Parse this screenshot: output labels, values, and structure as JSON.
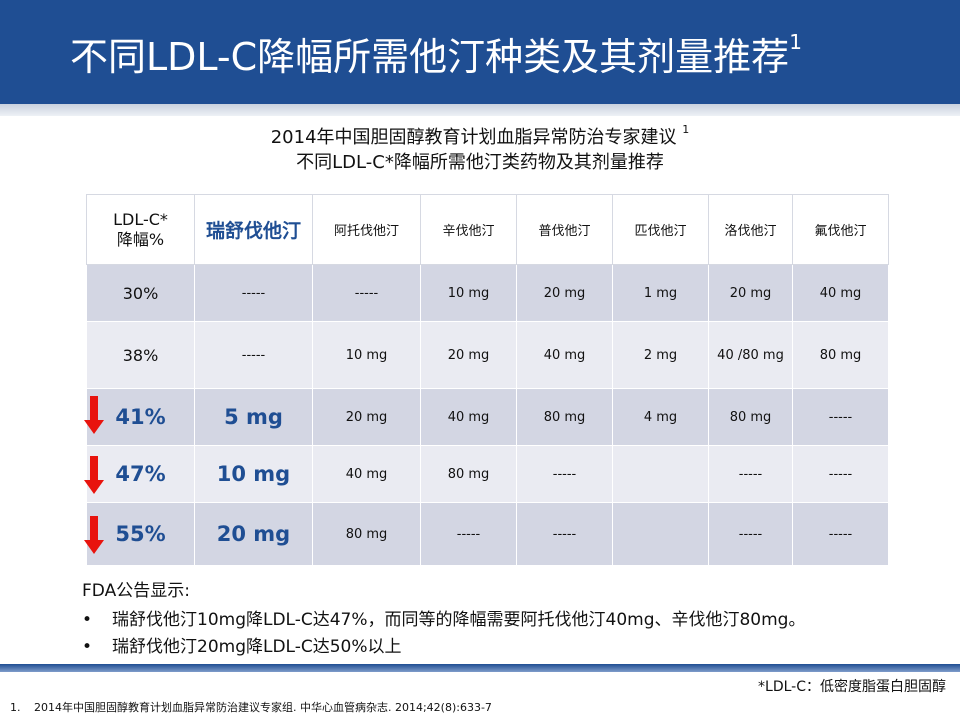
{
  "slide": {
    "title": "不同LDL-C降幅所需他汀种类及其剂量推荐",
    "title_ref": "1"
  },
  "subtitle": {
    "line1": "2014年中国胆固醇教育计划血脂异常防治专家建议",
    "line1_ref": "1",
    "line2": "不同LDL-C*降幅所需他汀类药物及其剂量推荐"
  },
  "table": {
    "headers": {
      "ldl_line1": "LDL-C*",
      "ldl_line2": "降幅%",
      "drugs": [
        "瑞舒伐他汀",
        "阿托伐他汀",
        "辛伐他汀",
        "普伐他汀",
        "匹伐他汀",
        "洛伐他汀",
        "氟伐他汀"
      ]
    },
    "rows": [
      {
        "pct": "30%",
        "cells": [
          "-----",
          "-----",
          "10 mg",
          "20 mg",
          "1 mg",
          "20 mg",
          "40 mg"
        ]
      },
      {
        "pct": "38%",
        "cells": [
          "-----",
          "10 mg",
          "20 mg",
          "40 mg",
          "2 mg",
          "40 /80 mg",
          "80 mg"
        ]
      },
      {
        "pct": "41%",
        "cells": [
          "5 mg",
          "20 mg",
          "40 mg",
          "80 mg",
          "4 mg",
          "80 mg",
          "-----"
        ]
      },
      {
        "pct": "47%",
        "cells": [
          "10 mg",
          "40 mg",
          "80 mg",
          "-----",
          "",
          "-----",
          "-----"
        ]
      },
      {
        "pct": "55%",
        "cells": [
          "20 mg",
          "80 mg",
          "-----",
          "-----",
          "",
          "-----",
          "-----"
        ]
      }
    ]
  },
  "fda": {
    "heading": "FDA公告显示:",
    "bullet_symbol": "•",
    "bullets": [
      "瑞舒伐他汀10mg降LDL-C达47%，而同等的降幅需要阿托伐他汀40mg、辛伐他汀80mg。",
      "瑞舒伐他汀20mg降LDL-C达50%以上"
    ]
  },
  "footnote": "*LDL-C：低密度脂蛋白胆固醇",
  "reference": {
    "number": "1.",
    "text": "2014年中国胆固醇教育计划血脂异常防治建议专家组. 中华心血管病杂志. 2014;42(8):633-7"
  },
  "colors": {
    "brand_blue": "#1f4e93",
    "arrow_red": "#e8140e",
    "row_dark": "#d3d6e3",
    "row_light": "#eaebf2"
  },
  "icons": {
    "highlight_marker": "red-down-arrow-icon"
  }
}
